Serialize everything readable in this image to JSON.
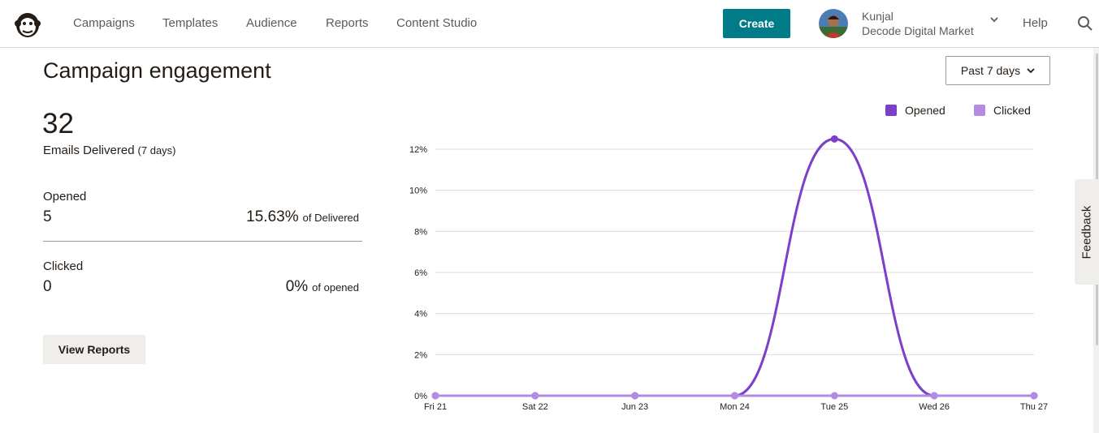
{
  "nav": {
    "items": [
      "Campaigns",
      "Templates",
      "Audience",
      "Reports",
      "Content Studio"
    ],
    "create_label": "Create",
    "account_name": "Kunjal",
    "account_org": "Decode Digital Market",
    "help_label": "Help"
  },
  "page": {
    "title": "Campaign engagement",
    "range_label": "Past 7 days"
  },
  "stats": {
    "delivered_count": "32",
    "delivered_label": "Emails Delivered",
    "delivered_period": "(7 days)",
    "opened_label": "Opened",
    "opened_count": "5",
    "opened_pct": "15.63%",
    "opened_pct_suffix": "of Delivered",
    "clicked_label": "Clicked",
    "clicked_count": "0",
    "clicked_pct": "0%",
    "clicked_pct_suffix": "of opened",
    "view_reports_label": "View Reports"
  },
  "feedback_label": "Feedback",
  "colors": {
    "brand": "#007c89",
    "opened": "#7b3fc9",
    "clicked": "#b38be3"
  },
  "chart_data": {
    "type": "line",
    "categories": [
      "Fri 21",
      "Sat 22",
      "Jun 23",
      "Mon 24",
      "Tue 25",
      "Wed 26",
      "Thu 27"
    ],
    "series": [
      {
        "name": "Opened",
        "values": [
          0,
          0,
          0,
          0,
          12.5,
          0,
          0
        ]
      },
      {
        "name": "Clicked",
        "values": [
          0,
          0,
          0,
          0,
          0,
          0,
          0
        ]
      }
    ],
    "yticks": [
      "0%",
      "2%",
      "4%",
      "6%",
      "8%",
      "10%",
      "12%"
    ],
    "ylim": [
      0,
      12
    ],
    "y_unit": "%",
    "legend_position": "top-right",
    "grid": true
  }
}
